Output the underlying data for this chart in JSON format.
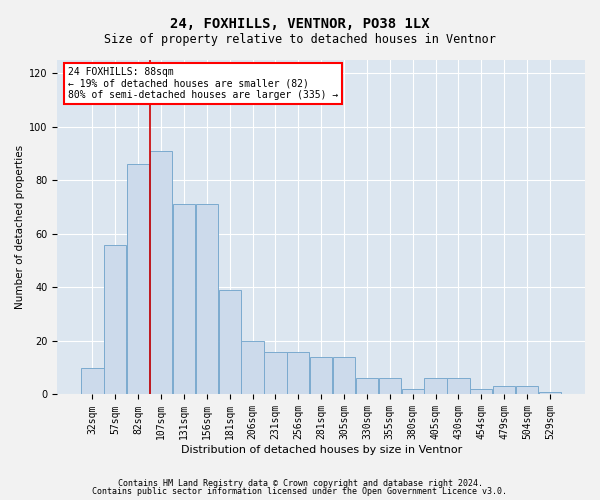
{
  "title1": "24, FOXHILLS, VENTNOR, PO38 1LX",
  "title2": "Size of property relative to detached houses in Ventnor",
  "xlabel": "Distribution of detached houses by size in Ventnor",
  "ylabel": "Number of detached properties",
  "categories": [
    "32sqm",
    "57sqm",
    "82sqm",
    "107sqm",
    "131sqm",
    "156sqm",
    "181sqm",
    "206sqm",
    "231sqm",
    "256sqm",
    "281sqm",
    "305sqm",
    "330sqm",
    "355sqm",
    "380sqm",
    "405sqm",
    "430sqm",
    "454sqm",
    "479sqm",
    "504sqm",
    "529sqm"
  ],
  "bar_values": [
    10,
    56,
    86,
    91,
    71,
    71,
    39,
    20,
    16,
    16,
    14,
    14,
    6,
    6,
    2,
    6,
    6,
    2,
    3,
    3,
    1
  ],
  "bar_color": "#ccdaeb",
  "bar_edge_color": "#7baacf",
  "vline_color": "#cc0000",
  "vline_x": 2.5,
  "annotation_text": "24 FOXHILLS: 88sqm\n← 19% of detached houses are smaller (82)\n80% of semi-detached houses are larger (335) →",
  "ylim": [
    0,
    125
  ],
  "yticks": [
    0,
    20,
    40,
    60,
    80,
    100,
    120
  ],
  "background_color": "#dce6f0",
  "fig_background": "#f2f2f2",
  "footer1": "Contains HM Land Registry data © Crown copyright and database right 2024.",
  "footer2": "Contains public sector information licensed under the Open Government Licence v3.0.",
  "title1_fontsize": 10,
  "title2_fontsize": 8.5,
  "xlabel_fontsize": 8,
  "ylabel_fontsize": 7.5,
  "tick_fontsize": 7,
  "footer_fontsize": 6,
  "ann_fontsize": 7
}
